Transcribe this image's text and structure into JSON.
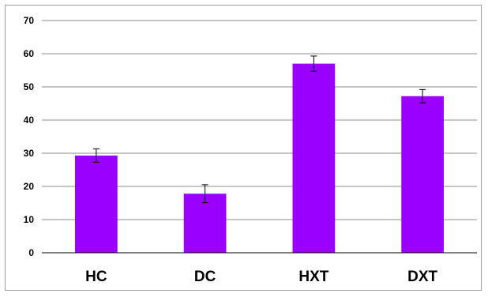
{
  "chart_data": {
    "type": "bar",
    "categories": [
      "HC",
      "DC",
      "HXT",
      "DXT"
    ],
    "values": [
      29.3,
      17.8,
      57.0,
      47.2
    ],
    "error": [
      2.0,
      2.7,
      2.3,
      2.0
    ],
    "y_ticks": [
      "0",
      "10",
      "20",
      "30",
      "40",
      "50",
      "60",
      "70"
    ],
    "ylim": [
      0,
      70
    ],
    "grid": true,
    "legend": "none",
    "bar_color": "#9900ff",
    "grid_color": "#8c8c8c"
  }
}
